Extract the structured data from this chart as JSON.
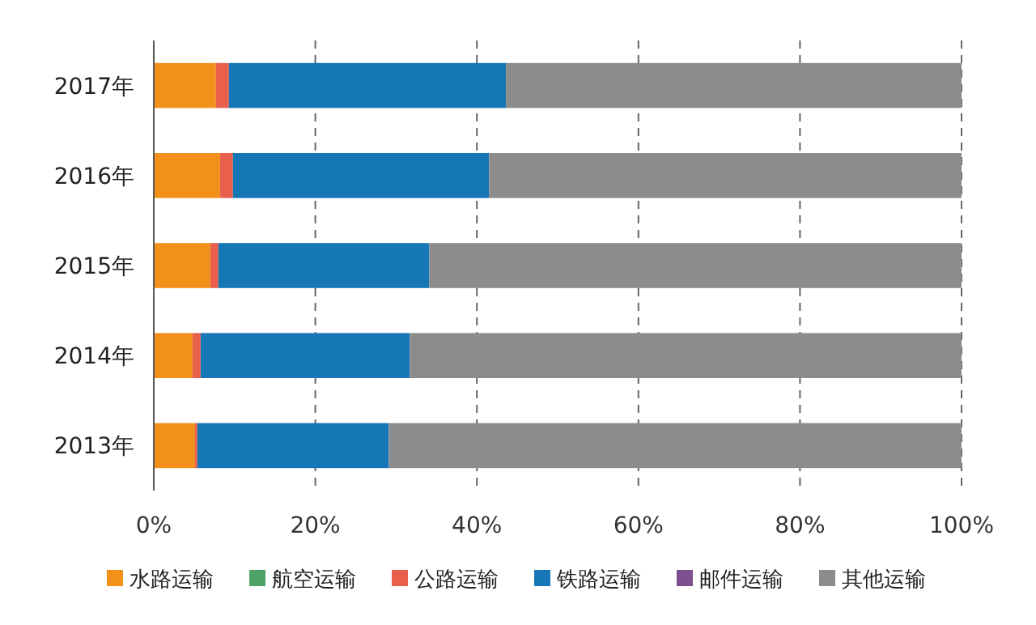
{
  "chart_data": {
    "type": "bar",
    "orientation": "horizontal",
    "stacked": true,
    "categories": [
      "2017年",
      "2016年",
      "2015年",
      "2014年",
      "2013年"
    ],
    "series": [
      {
        "name": "水路运输",
        "color": "#f39019",
        "values": [
          7.7,
          8.2,
          7.0,
          4.8,
          5.1
        ]
      },
      {
        "name": "航空运输",
        "color": "#4ea267",
        "values": [
          0,
          0,
          0,
          0,
          0
        ]
      },
      {
        "name": "公路运输",
        "color": "#e8604c",
        "values": [
          1.6,
          1.6,
          1.0,
          1.0,
          0.3
        ]
      },
      {
        "name": "铁路运输",
        "color": "#1677b7",
        "values": [
          34.3,
          31.7,
          26.1,
          25.9,
          23.7
        ]
      },
      {
        "name": "邮件运输",
        "color": "#7d4f8c",
        "values": [
          0,
          0,
          0,
          0,
          0
        ]
      },
      {
        "name": "其他运输",
        "color": "#8c8c8c",
        "values": [
          56.4,
          58.5,
          65.9,
          68.3,
          70.9
        ]
      }
    ],
    "xlim": [
      0,
      100
    ],
    "xticks": [
      {
        "value": 0,
        "label": "0%"
      },
      {
        "value": 20,
        "label": "20%"
      },
      {
        "value": 40,
        "label": "40%"
      },
      {
        "value": 60,
        "label": "60%"
      },
      {
        "value": 80,
        "label": "80%"
      },
      {
        "value": 100,
        "label": "100%"
      }
    ],
    "grid": "x",
    "legend": "bottom"
  }
}
